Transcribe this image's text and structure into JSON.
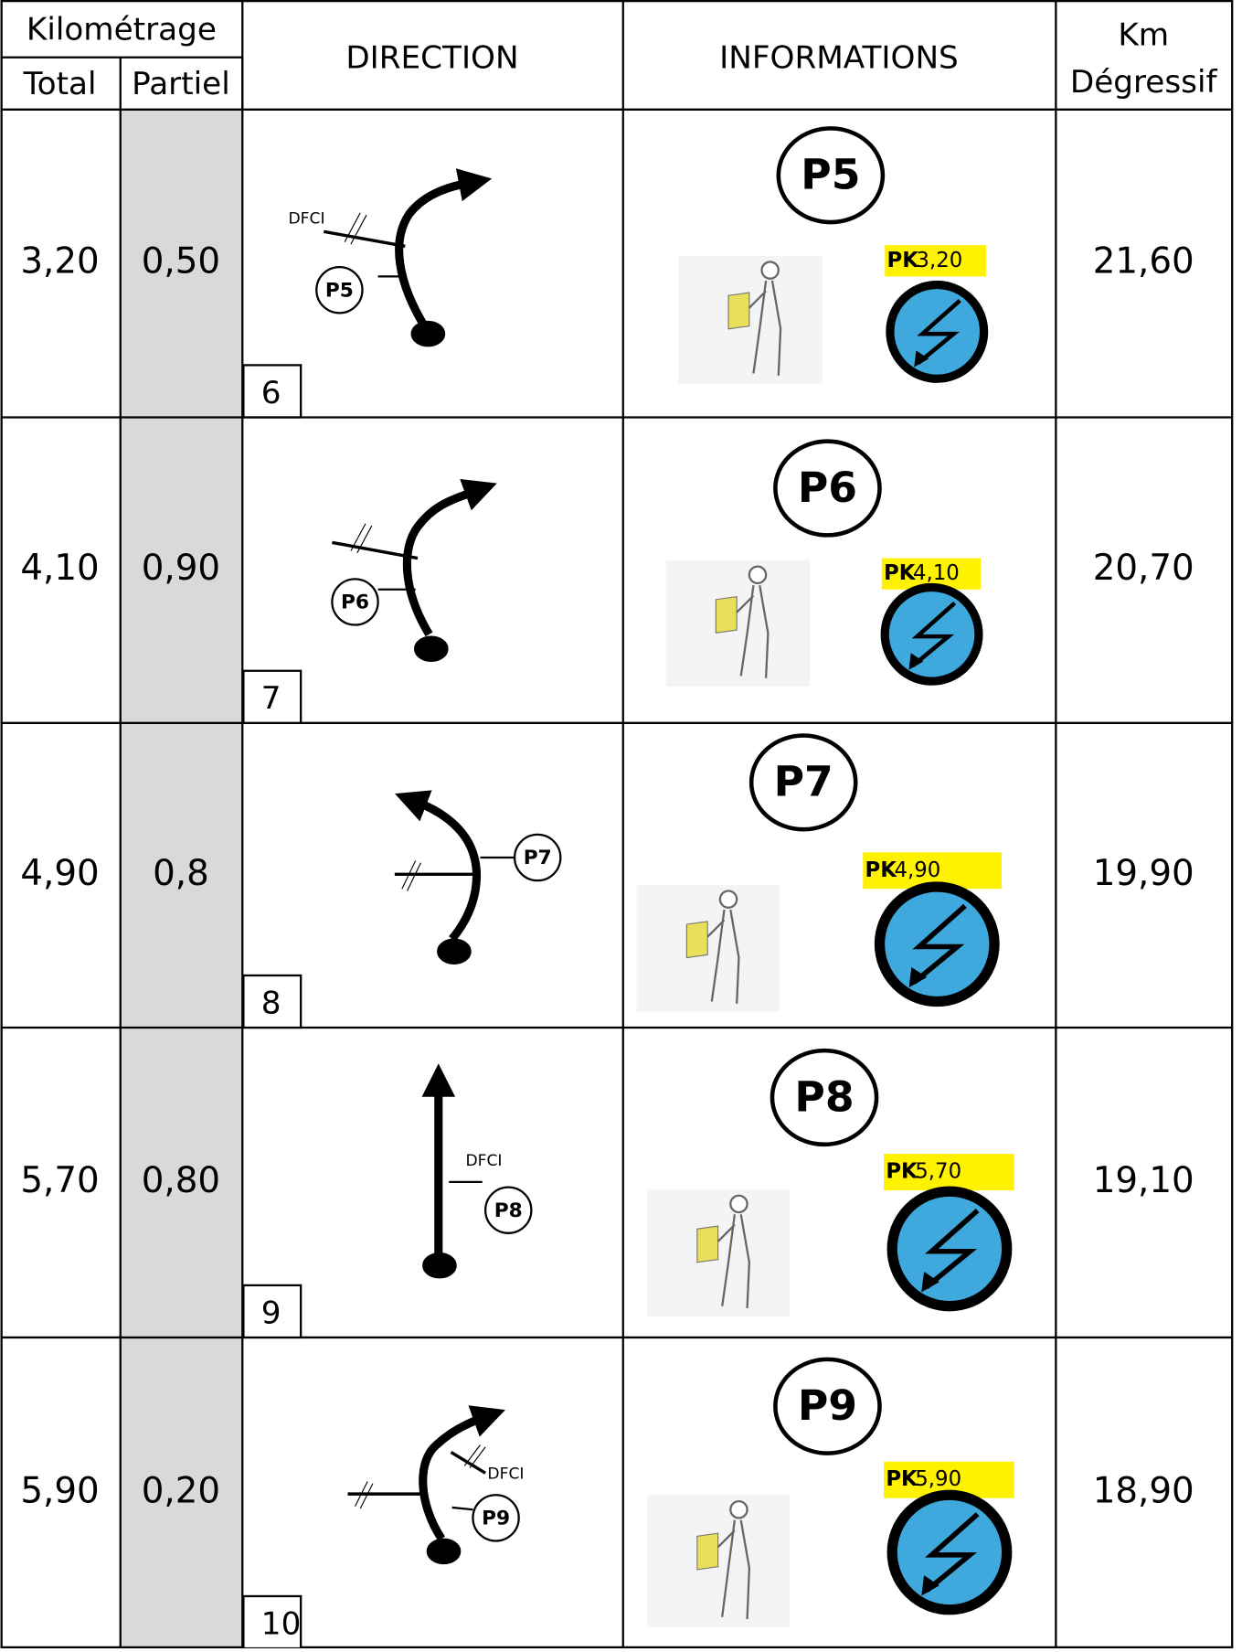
{
  "header": {
    "kilometrage": "Kilométrage",
    "total": "Total",
    "partiel": "Partiel",
    "direction": "DIRECTION",
    "informations": "INFORMATIONS",
    "km": "Km",
    "degressif": "Dégressif"
  },
  "rows": [
    {
      "total": "3,20",
      "partiel": "0,50",
      "step": "6",
      "dfci": "DFCI",
      "point": "P5",
      "info_point": "P5",
      "pk_prefix": "PK",
      "pk": "3,20",
      "km_degressif": "21,60"
    },
    {
      "total": "4,10",
      "partiel": "0,90",
      "step": "7",
      "point": "P6",
      "info_point": "P6",
      "pk_prefix": "PK",
      "pk": "4,10",
      "km_degressif": "20,70"
    },
    {
      "total": "4,90",
      "partiel": "0,8",
      "step": "8",
      "point": "P7",
      "info_point": "P7",
      "pk_prefix": "PK",
      "pk": "4,90",
      "km_degressif": "19,90"
    },
    {
      "total": "5,70",
      "partiel": "0,80",
      "step": "9",
      "dfci": "DFCI",
      "point": "P8",
      "info_point": "P8",
      "pk_prefix": "PK",
      "pk": "5,70",
      "km_degressif": "19,10"
    },
    {
      "total": "5,90",
      "partiel": "0,20",
      "step": "10",
      "dfci": "DFCI",
      "point": "P9",
      "info_point": "P9",
      "pk_prefix": "PK",
      "pk": "5,90",
      "km_degressif": "18,90"
    }
  ]
}
